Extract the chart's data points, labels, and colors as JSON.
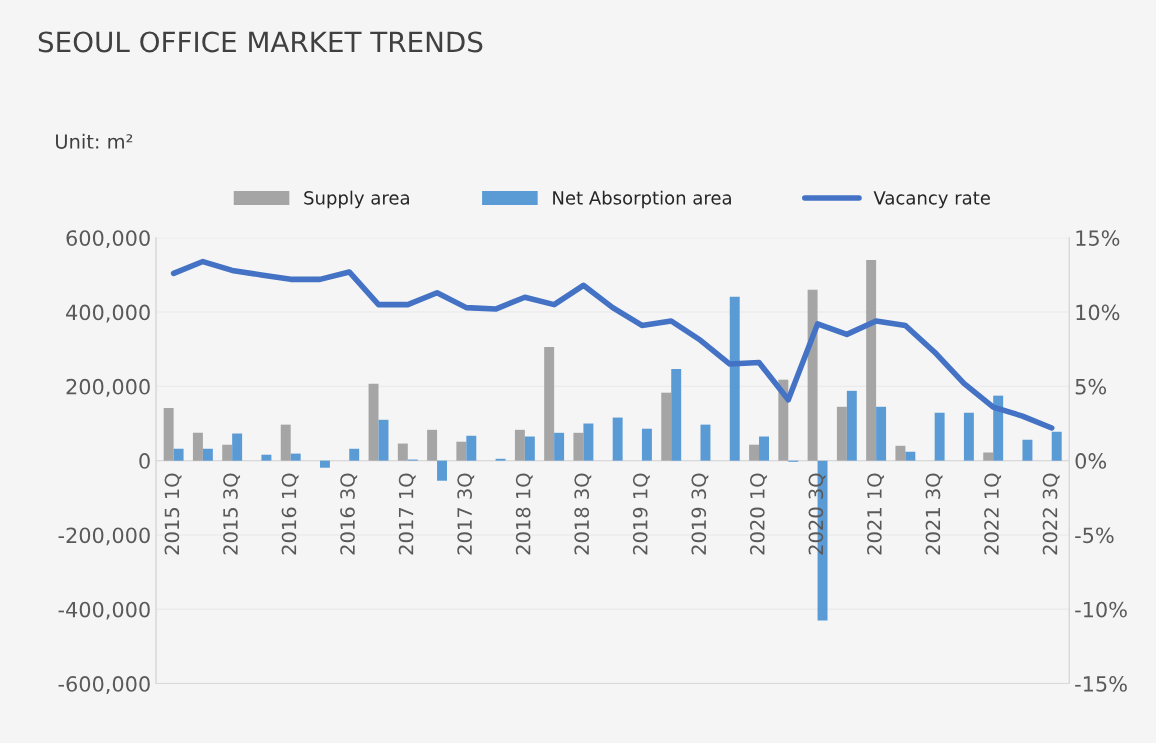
{
  "chart_data": {
    "type": "bar",
    "title": "SEOUL OFFICE MARKET TRENDS",
    "annotations": [
      "Unit: m²"
    ],
    "categories": [
      "2015 1Q",
      null,
      "2015 3Q",
      null,
      "2016 1Q",
      null,
      "2016 3Q",
      null,
      "2017 1Q",
      null,
      "2017 3Q",
      null,
      "2018 1Q",
      null,
      "2018 3Q",
      null,
      "2019 1Q",
      null,
      "2019 3Q",
      null,
      "2020 1Q",
      null,
      "2020 3Q",
      null,
      "2021 1Q",
      null,
      "2021 3Q",
      null,
      "2022 1Q",
      null,
      "2022 3Q"
    ],
    "series": [
      {
        "name": "Supply area",
        "color": "#a5a5a5",
        "values": [
          142000,
          75000,
          43000,
          null,
          97000,
          null,
          null,
          207000,
          46000,
          83000,
          51000,
          null,
          83000,
          306000,
          75000,
          null,
          null,
          183000,
          null,
          null,
          43000,
          218000,
          460000,
          145000,
          540000,
          40000,
          null,
          null,
          22000,
          null,
          null
        ]
      },
      {
        "name": "Net Absorption area",
        "color": "#5b9bd5",
        "values": [
          32000,
          32000,
          73000,
          16000,
          19000,
          -19000,
          32000,
          110000,
          3000,
          -54000,
          67000,
          5000,
          65000,
          75000,
          100000,
          116000,
          86000,
          247000,
          97000,
          441000,
          65000,
          -3000,
          -430000,
          188000,
          145000,
          24000,
          129000,
          129000,
          175000,
          56000,
          78000
        ]
      },
      {
        "name": "Vacancy rate",
        "type": "line",
        "axis": "y2",
        "color": "#4472c4",
        "values": [
          12.6,
          13.4,
          12.8,
          12.5,
          12.2,
          12.2,
          12.7,
          10.5,
          10.5,
          11.3,
          10.3,
          10.2,
          11.0,
          10.5,
          11.8,
          10.3,
          9.1,
          9.4,
          8.1,
          6.5,
          6.6,
          4.1,
          9.2,
          8.5,
          9.4,
          9.1,
          7.3,
          5.2,
          3.6,
          3.0,
          2.2
        ]
      }
    ],
    "ylim": [
      -600000,
      600000
    ],
    "yticks": [
      {
        "value": -600000,
        "label": "-600,000"
      },
      {
        "value": -400000,
        "label": "-400,000"
      },
      {
        "value": -200000,
        "label": "-200,000"
      },
      {
        "value": 0,
        "label": "0"
      },
      {
        "value": 200000,
        "label": "200,000"
      },
      {
        "value": 400000,
        "label": "400,000"
      },
      {
        "value": 600000,
        "label": "600,000"
      }
    ],
    "y2lim": [
      -15,
      15
    ],
    "y2ticks": [
      {
        "value": -15,
        "label": "-15%"
      },
      {
        "value": -10,
        "label": "-10%"
      },
      {
        "value": -5,
        "label": "-5%"
      },
      {
        "value": 0,
        "label": "0%"
      },
      {
        "value": 5,
        "label": "5%"
      },
      {
        "value": 10,
        "label": "10%"
      },
      {
        "value": 15,
        "label": "15%"
      }
    ],
    "grid": "y",
    "legend": "top",
    "line_style": "solid",
    "marker": "none"
  }
}
